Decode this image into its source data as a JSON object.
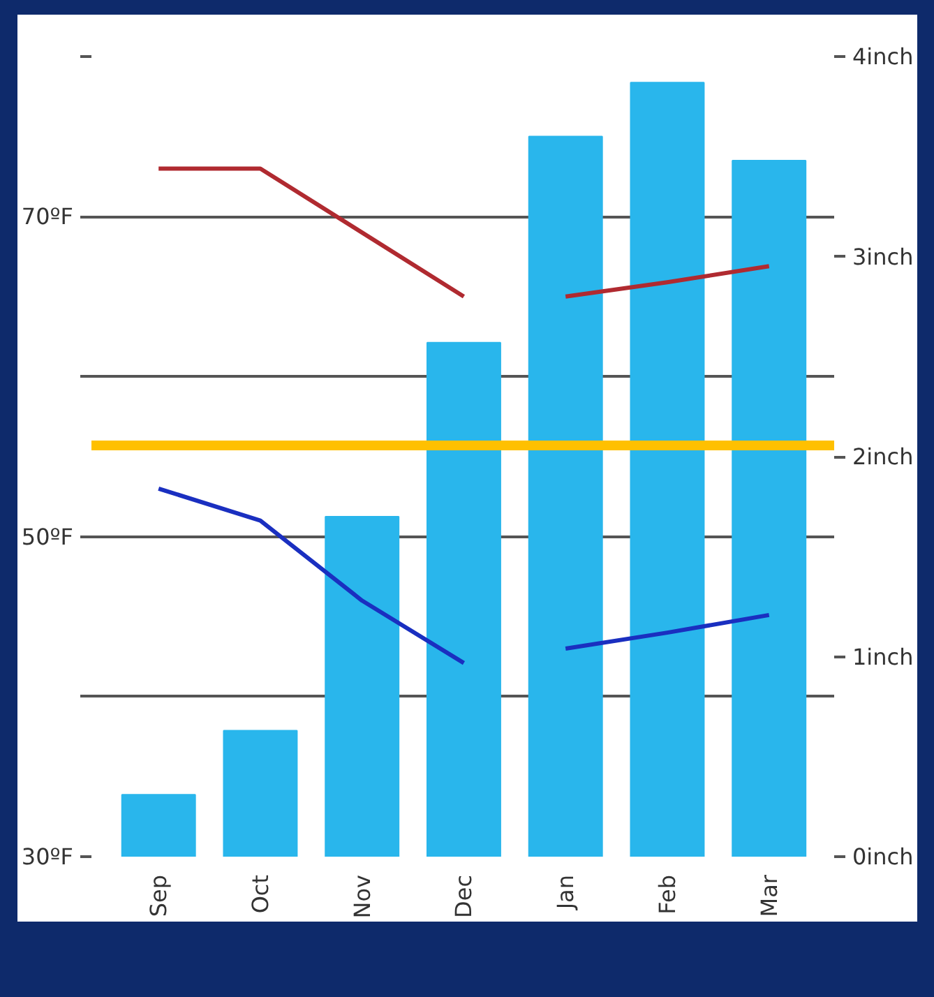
{
  "chart_data": {
    "type": "bar",
    "categories": [
      "Sep",
      "Oct",
      "Nov",
      "Dec",
      "Jan",
      "Feb",
      "Mar"
    ],
    "ylim": [
      30,
      80
    ],
    "yticks": [
      {
        "value": 30,
        "label": "30ºF"
      },
      {
        "value": 40,
        "label": null
      },
      {
        "value": 50,
        "label": "50ºF"
      },
      {
        "value": 60,
        "label": null
      },
      {
        "value": 70,
        "label": "70ºF"
      },
      {
        "value": 80,
        "label": null
      }
    ],
    "y2lim": [
      0,
      4
    ],
    "y2ticks": [
      {
        "value": 0,
        "label": "0inch"
      },
      {
        "value": 1,
        "label": "1inch"
      },
      {
        "value": 2,
        "label": "2inch"
      },
      {
        "value": 3,
        "label": "3inch"
      },
      {
        "value": 4,
        "label": "4inch"
      }
    ],
    "grid": "y",
    "ref_lines": [
      {
        "axis": "y",
        "value": 55.7,
        "color": "#ffc000"
      }
    ],
    "series": [
      {
        "axis": "y2",
        "color": "#29b6ec",
        "values": [
          0.31,
          0.63,
          1.7,
          2.57,
          3.6,
          3.87,
          3.48
        ]
      },
      {
        "type": "line",
        "color": "#b02a30",
        "values": [
          73,
          73,
          69,
          65,
          null,
          null,
          null
        ]
      },
      {
        "type": "line",
        "color": "#b02a30",
        "values": [
          null,
          null,
          null,
          null,
          65,
          65.9,
          66.9
        ]
      },
      {
        "type": "line",
        "color": "#1a2fc0",
        "values": [
          53,
          51,
          46,
          42.1,
          null,
          null,
          null
        ]
      },
      {
        "type": "line",
        "color": "#1a2fc0",
        "values": [
          null,
          null,
          null,
          null,
          43,
          44,
          45.1
        ]
      }
    ]
  }
}
